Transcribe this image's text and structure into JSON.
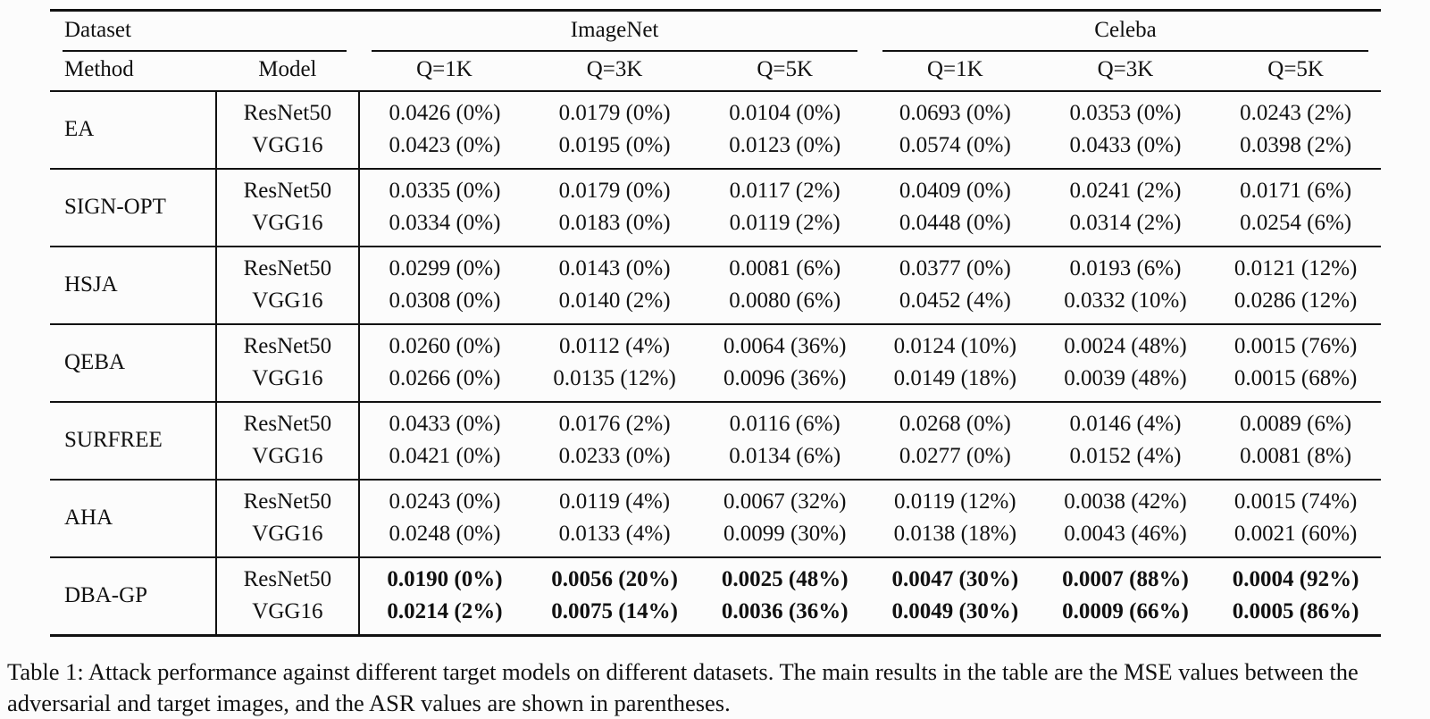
{
  "page": {
    "background": "#fcfcfc",
    "text_color": "#111111",
    "rule_color": "#111111"
  },
  "table": {
    "header": {
      "dataset_label": "Dataset",
      "imagenet_label": "ImageNet",
      "celeba_label": "Celeba",
      "method_label": "Method",
      "model_label": "Model",
      "q_labels": [
        "Q=1K",
        "Q=3K",
        "Q=5K",
        "Q=1K",
        "Q=3K",
        "Q=5K"
      ]
    },
    "groups": [
      {
        "method": "EA",
        "bold": false,
        "rows": [
          {
            "model": "ResNet50",
            "values": [
              "0.0426 (0%)",
              "0.0179 (0%)",
              "0.0104 (0%)",
              "0.0693 (0%)",
              "0.0353 (0%)",
              "0.0243 (2%)"
            ]
          },
          {
            "model": "VGG16",
            "values": [
              "0.0423 (0%)",
              "0.0195 (0%)",
              "0.0123 (0%)",
              "0.0574 (0%)",
              "0.0433 (0%)",
              "0.0398 (2%)"
            ]
          }
        ]
      },
      {
        "method": "SIGN-OPT",
        "bold": false,
        "rows": [
          {
            "model": "ResNet50",
            "values": [
              "0.0335 (0%)",
              "0.0179 (0%)",
              "0.0117 (2%)",
              "0.0409 (0%)",
              "0.0241 (2%)",
              "0.0171 (6%)"
            ]
          },
          {
            "model": "VGG16",
            "values": [
              "0.0334 (0%)",
              "0.0183 (0%)",
              "0.0119 (2%)",
              "0.0448 (0%)",
              "0.0314 (2%)",
              "0.0254 (6%)"
            ]
          }
        ]
      },
      {
        "method": "HSJA",
        "bold": false,
        "rows": [
          {
            "model": "ResNet50",
            "values": [
              "0.0299 (0%)",
              "0.0143 (0%)",
              "0.0081 (6%)",
              "0.0377 (0%)",
              "0.0193 (6%)",
              "0.0121 (12%)"
            ]
          },
          {
            "model": "VGG16",
            "values": [
              "0.0308 (0%)",
              "0.0140 (2%)",
              "0.0080 (6%)",
              "0.0452 (4%)",
              "0.0332 (10%)",
              "0.0286 (12%)"
            ]
          }
        ]
      },
      {
        "method": "QEBA",
        "bold": false,
        "rows": [
          {
            "model": "ResNet50",
            "values": [
              "0.0260 (0%)",
              "0.0112 (4%)",
              "0.0064 (36%)",
              "0.0124 (10%)",
              "0.0024 (48%)",
              "0.0015 (76%)"
            ]
          },
          {
            "model": "VGG16",
            "values": [
              "0.0266 (0%)",
              "0.0135 (12%)",
              "0.0096 (36%)",
              "0.0149 (18%)",
              "0.0039 (48%)",
              "0.0015 (68%)"
            ]
          }
        ]
      },
      {
        "method": "SURFREE",
        "bold": false,
        "rows": [
          {
            "model": "ResNet50",
            "values": [
              "0.0433 (0%)",
              "0.0176 (2%)",
              "0.0116 (6%)",
              "0.0268 (0%)",
              "0.0146 (4%)",
              "0.0089 (6%)"
            ]
          },
          {
            "model": "VGG16",
            "values": [
              "0.0421 (0%)",
              "0.0233 (0%)",
              "0.0134 (6%)",
              "0.0277 (0%)",
              "0.0152 (4%)",
              "0.0081 (8%)"
            ]
          }
        ]
      },
      {
        "method": "AHA",
        "bold": false,
        "rows": [
          {
            "model": "ResNet50",
            "values": [
              "0.0243 (0%)",
              "0.0119 (4%)",
              "0.0067 (32%)",
              "0.0119 (12%)",
              "0.0038 (42%)",
              "0.0015 (74%)"
            ]
          },
          {
            "model": "VGG16",
            "values": [
              "0.0248 (0%)",
              "0.0133 (4%)",
              "0.0099 (30%)",
              "0.0138 (18%)",
              "0.0043 (46%)",
              "0.0021 (60%)"
            ]
          }
        ]
      },
      {
        "method": "DBA-GP",
        "bold": true,
        "rows": [
          {
            "model": "ResNet50",
            "values": [
              "0.0190 (0%)",
              "0.0056 (20%)",
              "0.0025 (48%)",
              "0.0047 (30%)",
              "0.0007 (88%)",
              "0.0004 (92%)"
            ]
          },
          {
            "model": "VGG16",
            "values": [
              "0.0214 (2%)",
              "0.0075 (14%)",
              "0.0036 (36%)",
              "0.0049 (30%)",
              "0.0009 (66%)",
              "0.0005 (86%)"
            ]
          }
        ]
      }
    ]
  },
  "caption": "Table 1: Attack performance against different target models on different datasets. The main results in the table are the MSE values between the adversarial and target images, and the ASR values are shown in parentheses."
}
